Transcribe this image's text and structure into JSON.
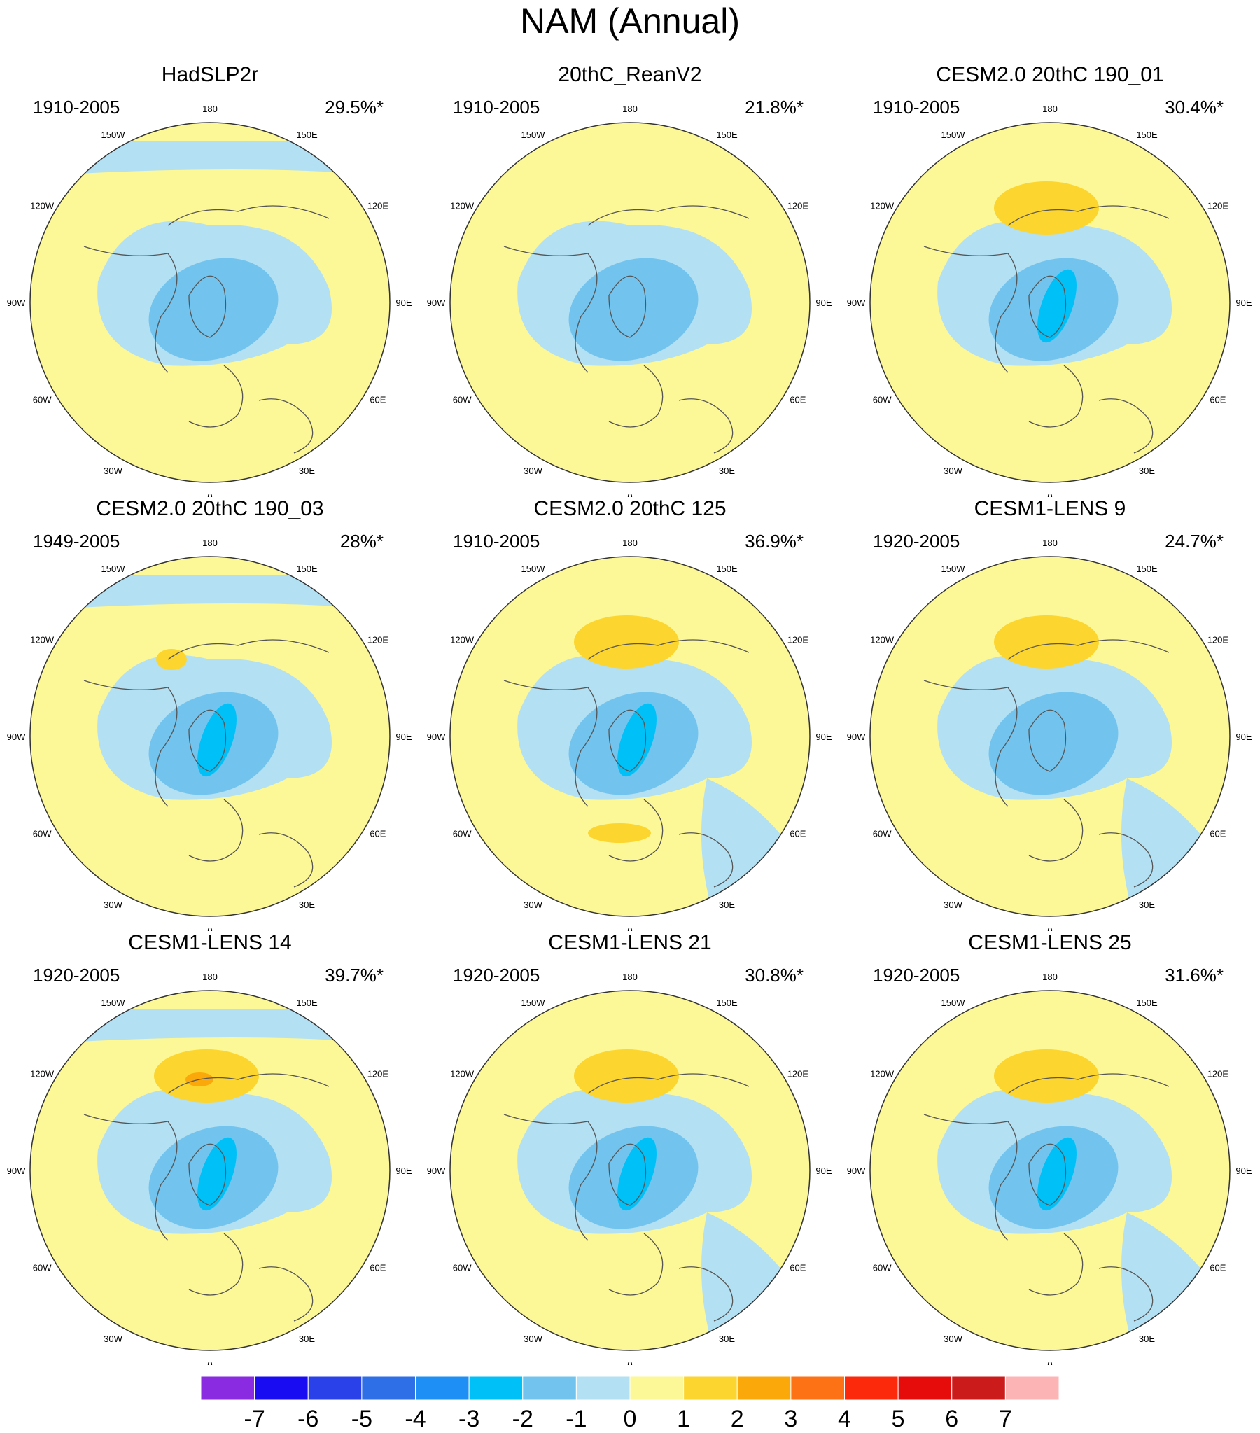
{
  "title": "NAM (Annual)",
  "longitude_labels": [
    "180",
    "150E",
    "120E",
    "90E",
    "60E",
    "30E",
    "0",
    "30W",
    "60W",
    "90W",
    "120W",
    "150W"
  ],
  "panels": [
    {
      "title": "HadSLP2r",
      "years": "1910-2005",
      "variance": "29.5%*",
      "features": [
        {
          "type": "negative",
          "level": -1,
          "extent": "wide"
        },
        {
          "type": "negative",
          "level": -2,
          "extent": "center"
        }
      ]
    },
    {
      "title": "20thC_ReanV2",
      "years": "1910-2005",
      "variance": "21.8%*",
      "features": [
        {
          "type": "negative",
          "level": -1,
          "extent": "wide"
        },
        {
          "type": "negative",
          "level": -2,
          "extent": "center"
        }
      ]
    },
    {
      "title": "CESM2.0 20thC 190_01",
      "years": "1910-2005",
      "variance": "30.4%*",
      "features": [
        {
          "type": "negative",
          "level": -3,
          "extent": "core"
        },
        {
          "type": "positive",
          "level": 1,
          "extent": "pacific"
        }
      ]
    },
    {
      "title": "CESM2.0 20thC 190_03",
      "years": "1949-2005",
      "variance": "28%*",
      "features": [
        {
          "type": "negative",
          "level": -3,
          "extent": "core"
        },
        {
          "type": "positive",
          "level": 1,
          "extent": "pacific-small"
        }
      ]
    },
    {
      "title": "CESM2.0 20thC 125",
      "years": "1910-2005",
      "variance": "36.9%*",
      "features": [
        {
          "type": "negative",
          "level": -3,
          "extent": "core"
        },
        {
          "type": "positive",
          "level": 1,
          "extent": "pacific"
        },
        {
          "type": "positive",
          "level": 1,
          "extent": "atlantic"
        }
      ]
    },
    {
      "title": "CESM1-LENS 9",
      "years": "1920-2005",
      "variance": "24.7%*",
      "features": [
        {
          "type": "negative",
          "level": -2,
          "extent": "center"
        },
        {
          "type": "positive",
          "level": 1,
          "extent": "pacific"
        }
      ]
    },
    {
      "title": "CESM1-LENS 14",
      "years": "1920-2005",
      "variance": "39.7%*",
      "features": [
        {
          "type": "negative",
          "level": -3,
          "extent": "core"
        },
        {
          "type": "positive",
          "level": 2,
          "extent": "pacific"
        }
      ]
    },
    {
      "title": "CESM1-LENS 21",
      "years": "1920-2005",
      "variance": "30.8%*",
      "features": [
        {
          "type": "negative",
          "level": -3,
          "extent": "core"
        },
        {
          "type": "positive",
          "level": 1,
          "extent": "pacific"
        }
      ]
    },
    {
      "title": "CESM1-LENS 25",
      "years": "1920-2005",
      "variance": "31.6%*",
      "features": [
        {
          "type": "negative",
          "level": -3,
          "extent": "core"
        },
        {
          "type": "positive",
          "level": 1,
          "extent": "pacific"
        }
      ]
    }
  ],
  "colorbar": {
    "ticks": [
      "-7",
      "-6",
      "-5",
      "-4",
      "-3",
      "-2",
      "-1",
      "0",
      "1",
      "2",
      "3",
      "4",
      "5",
      "6",
      "7"
    ],
    "colors": [
      "#8a2be2",
      "#1a0cf2",
      "#2a40e8",
      "#2e6fe8",
      "#1e90f5",
      "#00c0f8",
      "#72c4ee",
      "#b3e0f3",
      "#fcf797",
      "#fcd52e",
      "#fba80a",
      "#fc7215",
      "#fc2a0b",
      "#e60c0c",
      "#cc1b1b",
      "#fcb4b4"
    ]
  }
}
